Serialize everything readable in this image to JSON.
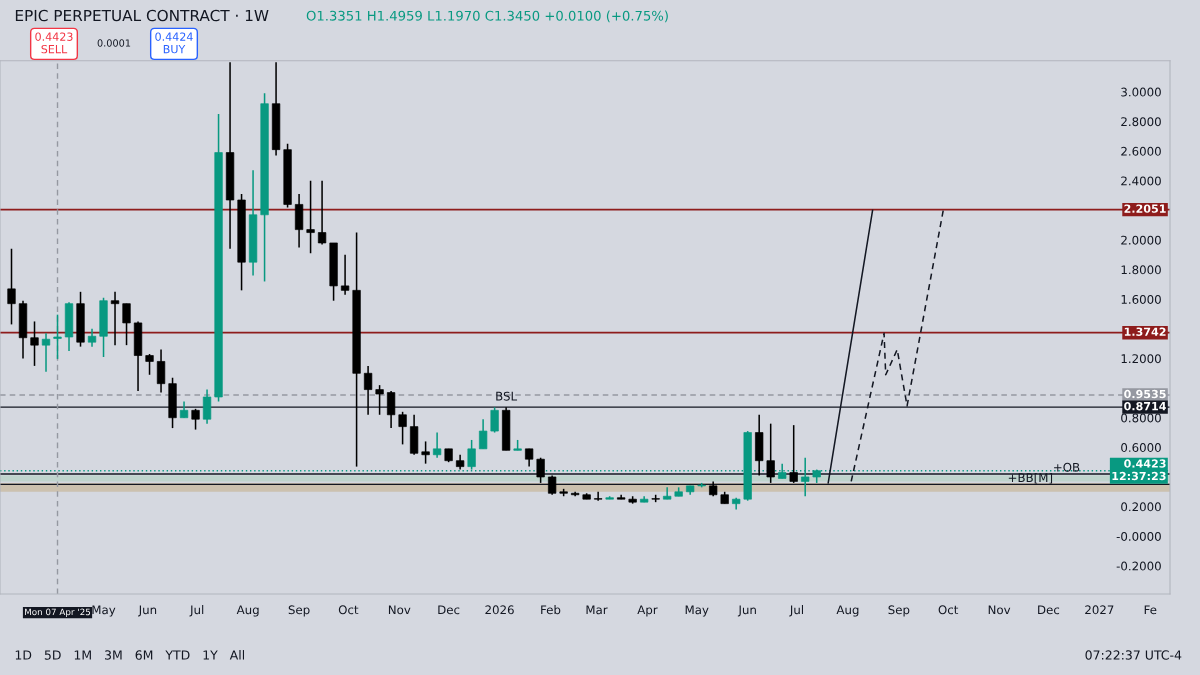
{
  "chart_data": {
    "type": "candlestick",
    "title": "EPIC PERPETUAL CONTRACT · 1W",
    "x": [
      "2025-03-10",
      "2025-03-17",
      "2025-03-24",
      "2025-03-31",
      "2025-04-07",
      "2025-04-14",
      "2025-04-21",
      "2025-04-28",
      "2025-05-05",
      "2025-05-12",
      "2025-05-19",
      "2025-05-26",
      "2025-06-02",
      "2025-06-09",
      "2025-06-16",
      "2025-06-23",
      "2025-06-30",
      "2025-07-07",
      "2025-07-14",
      "2025-07-21",
      "2025-07-28",
      "2025-08-04",
      "2025-08-11",
      "2025-08-18",
      "2025-08-25",
      "2025-09-01",
      "2025-09-08",
      "2025-09-15",
      "2025-09-22",
      "2025-09-29",
      "2025-10-06",
      "2025-10-13",
      "2025-10-20",
      "2025-10-27",
      "2025-11-03",
      "2025-11-10",
      "2025-11-17",
      "2025-11-24",
      "2025-12-01",
      "2025-12-08",
      "2025-12-15",
      "2025-12-22",
      "2025-12-29",
      "2026-01-05",
      "2026-01-12",
      "2026-01-19",
      "2026-01-26",
      "2026-02-02",
      "2026-02-09",
      "2026-02-16",
      "2026-02-23",
      "2026-03-02",
      "2026-03-09",
      "2026-03-16",
      "2026-03-23",
      "2026-03-30",
      "2026-04-06",
      "2026-04-13",
      "2026-04-20",
      "2026-04-27",
      "2026-05-04",
      "2026-05-11",
      "2026-05-18",
      "2026-05-25",
      "2026-06-01",
      "2026-06-08",
      "2026-06-15",
      "2026-06-22",
      "2026-06-29",
      "2026-07-06",
      "2026-07-13"
    ],
    "ohlc": [
      [
        1.67,
        1.94,
        1.43,
        1.57
      ],
      [
        1.57,
        1.59,
        1.2,
        1.34
      ],
      [
        1.34,
        1.45,
        1.15,
        1.29
      ],
      [
        1.29,
        1.37,
        1.11,
        1.33
      ],
      [
        1.3351,
        1.4959,
        1.197,
        1.345
      ],
      [
        1.345,
        1.58,
        1.25,
        1.57
      ],
      [
        1.57,
        1.65,
        1.28,
        1.31
      ],
      [
        1.31,
        1.4,
        1.28,
        1.35
      ],
      [
        1.35,
        1.61,
        1.21,
        1.59
      ],
      [
        1.59,
        1.65,
        1.29,
        1.57
      ],
      [
        1.57,
        1.57,
        1.29,
        1.44
      ],
      [
        1.44,
        1.45,
        0.98,
        1.22
      ],
      [
        1.22,
        1.23,
        1.09,
        1.18
      ],
      [
        1.18,
        1.26,
        0.97,
        1.03
      ],
      [
        1.03,
        1.07,
        0.73,
        0.8
      ],
      [
        0.8,
        0.91,
        0.8,
        0.85
      ],
      [
        0.85,
        0.86,
        0.72,
        0.79
      ],
      [
        0.79,
        0.99,
        0.76,
        0.94
      ],
      [
        0.94,
        2.85,
        0.91,
        2.59
      ],
      [
        2.59,
        3.2,
        1.94,
        2.27
      ],
      [
        2.27,
        2.31,
        1.66,
        1.85
      ],
      [
        1.85,
        2.47,
        1.76,
        2.17
      ],
      [
        2.17,
        2.99,
        1.72,
        2.92
      ],
      [
        2.92,
        3.2,
        2.57,
        2.61
      ],
      [
        2.61,
        2.65,
        2.22,
        2.24
      ],
      [
        2.24,
        2.31,
        1.95,
        2.07
      ],
      [
        2.07,
        2.4,
        1.91,
        2.05
      ],
      [
        2.05,
        2.4,
        1.97,
        1.98
      ],
      [
        1.98,
        1.98,
        1.59,
        1.69
      ],
      [
        1.69,
        1.9,
        1.63,
        1.66
      ],
      [
        1.66,
        2.05,
        0.47,
        1.1
      ],
      [
        1.1,
        1.15,
        0.82,
        0.99
      ],
      [
        0.99,
        1.02,
        0.82,
        0.96
      ],
      [
        0.97,
        0.98,
        0.73,
        0.82
      ],
      [
        0.82,
        0.84,
        0.62,
        0.74
      ],
      [
        0.74,
        0.82,
        0.55,
        0.56
      ],
      [
        0.57,
        0.64,
        0.49,
        0.55
      ],
      [
        0.55,
        0.7,
        0.53,
        0.59
      ],
      [
        0.59,
        0.59,
        0.5,
        0.51
      ],
      [
        0.51,
        0.55,
        0.45,
        0.47
      ],
      [
        0.47,
        0.65,
        0.45,
        0.59
      ],
      [
        0.59,
        0.79,
        0.59,
        0.71
      ],
      [
        0.71,
        0.87,
        0.7,
        0.85
      ],
      [
        0.85,
        0.87,
        0.58,
        0.58
      ],
      [
        0.58,
        0.65,
        0.58,
        0.59
      ],
      [
        0.59,
        0.59,
        0.47,
        0.52
      ],
      [
        0.52,
        0.53,
        0.36,
        0.4
      ],
      [
        0.4,
        0.41,
        0.28,
        0.29
      ],
      [
        0.3,
        0.32,
        0.27,
        0.29
      ],
      [
        0.29,
        0.3,
        0.27,
        0.28
      ],
      [
        0.28,
        0.29,
        0.25,
        0.25
      ],
      [
        0.25,
        0.3,
        0.24,
        0.25
      ],
      [
        0.25,
        0.27,
        0.25,
        0.26
      ],
      [
        0.26,
        0.28,
        0.25,
        0.25
      ],
      [
        0.25,
        0.27,
        0.22,
        0.23
      ],
      [
        0.23,
        0.27,
        0.23,
        0.25
      ],
      [
        0.25,
        0.28,
        0.23,
        0.25
      ],
      [
        0.25,
        0.33,
        0.25,
        0.27
      ],
      [
        0.27,
        0.33,
        0.27,
        0.3
      ],
      [
        0.3,
        0.34,
        0.28,
        0.34
      ],
      [
        0.34,
        0.36,
        0.33,
        0.345
      ],
      [
        0.34,
        0.37,
        0.27,
        0.28
      ],
      [
        0.28,
        0.3,
        0.22,
        0.22
      ],
      [
        0.22,
        0.26,
        0.18,
        0.25
      ],
      [
        0.25,
        0.71,
        0.24,
        0.7
      ],
      [
        0.7,
        0.82,
        0.41,
        0.51
      ],
      [
        0.51,
        0.76,
        0.36,
        0.4
      ],
      [
        0.39,
        0.49,
        0.39,
        0.43
      ],
      [
        0.43,
        0.75,
        0.36,
        0.37
      ],
      [
        0.37,
        0.53,
        0.27,
        0.4
      ],
      [
        0.4,
        0.45,
        0.36,
        0.4423
      ]
    ],
    "colors": [
      "#000000",
      "#000000",
      "#000000",
      "#089981",
      "#089981",
      "#089981",
      "#000000",
      "#089981",
      "#089981",
      "#000000",
      "#000000",
      "#000000",
      "#000000",
      "#000000",
      "#000000",
      "#089981",
      "#000000",
      "#089981",
      "#089981",
      "#000000",
      "#000000",
      "#089981",
      "#089981",
      "#000000",
      "#000000",
      "#000000",
      "#000000",
      "#000000",
      "#000000",
      "#000000",
      "#000000",
      "#000000",
      "#000000",
      "#000000",
      "#000000",
      "#000000",
      "#000000",
      "#089981",
      "#000000",
      "#000000",
      "#089981",
      "#089981",
      "#089981",
      "#000000",
      "#089981",
      "#000000",
      "#000000",
      "#000000",
      "#000000",
      "#000000",
      "#000000",
      "#000000",
      "#089981",
      "#000000",
      "#000000",
      "#089981",
      "#000000",
      "#089981",
      "#089981",
      "#089981",
      "#089981",
      "#000000",
      "#000000",
      "#089981",
      "#089981",
      "#000000",
      "#000000",
      "#089981",
      "#000000",
      "#089981",
      "#089981"
    ],
    "series": [
      {
        "type": "line",
        "color": "#131722",
        "line_style": "solid",
        "x": [
          "2026-07-20",
          "2026-08-16"
        ],
        "values": [
          0.36,
          2.2
        ]
      },
      {
        "type": "line",
        "color": "#131722",
        "line_style": "dashed",
        "x": [
          "2026-08-03",
          "2026-08-23",
          "2026-08-24",
          "2026-08-31",
          "2026-09-06",
          "2026-09-28"
        ],
        "values": [
          0.37,
          1.37,
          1.09,
          1.26,
          0.88,
          2.2
        ]
      }
    ],
    "xlim": [
      "2025-03-03",
      "2027-02-13"
    ],
    "xticks": [
      {
        "value": "2025-05-05",
        "label": "May"
      },
      {
        "value": "2025-06-01",
        "label": "Jun"
      },
      {
        "value": "2025-07-01",
        "label": "Jul"
      },
      {
        "value": "2025-08-01",
        "label": "Aug"
      },
      {
        "value": "2025-09-01",
        "label": "Sep"
      },
      {
        "value": "2025-10-01",
        "label": "Oct"
      },
      {
        "value": "2025-11-01",
        "label": "Nov"
      },
      {
        "value": "2025-12-01",
        "label": "Dec"
      },
      {
        "value": "2026-01-01",
        "label": "2026"
      },
      {
        "value": "2026-02-01",
        "label": "Feb"
      },
      {
        "value": "2026-03-01",
        "label": "Mar"
      },
      {
        "value": "2026-04-01",
        "label": "Apr"
      },
      {
        "value": "2026-05-01",
        "label": "May"
      },
      {
        "value": "2026-06-01",
        "label": "Jun"
      },
      {
        "value": "2026-07-01",
        "label": "Jul"
      },
      {
        "value": "2026-08-01",
        "label": "Aug"
      },
      {
        "value": "2026-09-01",
        "label": "Sep"
      },
      {
        "value": "2026-10-01",
        "label": "Oct"
      },
      {
        "value": "2026-11-01",
        "label": "Nov"
      },
      {
        "value": "2026-12-01",
        "label": "Dec"
      },
      {
        "value": "2027-01-01",
        "label": "2027"
      },
      {
        "value": "2027-02-01",
        "label": "Fe"
      }
    ],
    "ylim": [
      -0.39,
      3.21
    ],
    "yticks": [
      {
        "value": -0.2,
        "label": "-0.2000"
      },
      {
        "value": 0,
        "label": "-0.0000"
      },
      {
        "value": 0.2,
        "label": "0.2000"
      },
      {
        "value": 0.6,
        "label": "0.6000"
      },
      {
        "value": 0.8,
        "label": "0.8000"
      },
      {
        "value": 1.2,
        "label": "1.2000"
      },
      {
        "value": 1.6,
        "label": "1.6000"
      },
      {
        "value": 1.8,
        "label": "1.8000"
      },
      {
        "value": 2.0,
        "label": "2.0000"
      },
      {
        "value": 2.4,
        "label": "2.4000"
      },
      {
        "value": 2.6,
        "label": "2.6000"
      },
      {
        "value": 2.8,
        "label": "2.8000"
      },
      {
        "value": 3.0,
        "label": "3.0000"
      }
    ],
    "ref_lines": [
      {
        "axis": "y",
        "value": 2.2051,
        "label": "2.2051",
        "color": "#8e1c1c",
        "line_style": "solid"
      },
      {
        "axis": "y",
        "value": 1.3742,
        "label": "1.3742",
        "color": "#8e1c1c",
        "line_style": "solid"
      },
      {
        "axis": "y",
        "value": 0.9535,
        "label": "0.9535",
        "color": "#9598a1",
        "line_style": "dashed"
      },
      {
        "axis": "y",
        "value": 0.8714,
        "label": "0.8714",
        "color": "#131722",
        "line_style": "solid"
      },
      {
        "axis": "y",
        "value": 0.4423,
        "label": "0.4423\n12:37:23",
        "color": "#089981",
        "line_style": "dotted"
      },
      {
        "axis": "y",
        "value": 0.42,
        "color": "#131722",
        "line_style": "solid"
      },
      {
        "axis": "y",
        "value": 0.35,
        "color": "#131722",
        "line_style": "solid"
      },
      {
        "axis": "x",
        "value": "2025-04-07",
        "label": "Mon 07 Apr '25",
        "color": "#9598a1",
        "line_style": "dashed"
      }
    ],
    "bands": [
      {
        "axis": "y",
        "from": 0.37,
        "to": 0.41,
        "color": "#b9d3c8"
      },
      {
        "axis": "y",
        "from": 0.3,
        "to": 0.36,
        "color": "#c9bba3"
      }
    ],
    "annotations": [
      "O1.3351 H1.4959 L1.1970 C1.3450 +0.0100 (+0.75%)",
      "0.4423\nSELL",
      "0.0001",
      "0.4424\nBUY",
      "1D   5D   1M   3M   6M   YTD   1Y   All",
      "07:22:37 UTC-4",
      {
        "text": "BSL",
        "x": "2026-01-05",
        "y": 0.9
      },
      {
        "text": "+OB",
        "x": "2026-12-12",
        "y": 0.42
      },
      {
        "text": "+BB[M]",
        "x": "2026-11-20",
        "y": 0.35
      }
    ]
  }
}
